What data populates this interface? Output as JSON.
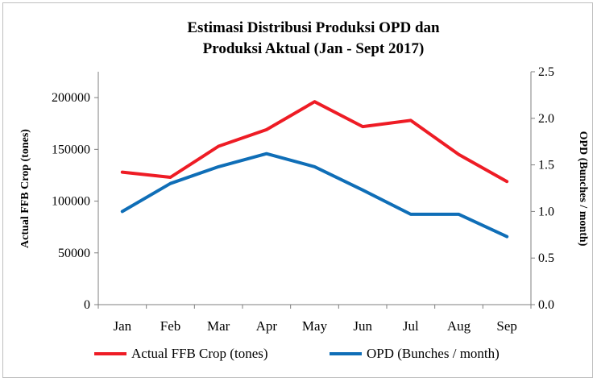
{
  "chart_data": {
    "type": "line",
    "title": [
      "Estimasi Distribusi Produksi OPD dan",
      "Produksi Aktual (Jan - Sept 2017)"
    ],
    "categories": [
      "Jan",
      "Feb",
      "Mar",
      "Apr",
      "May",
      "Jun",
      "Jul",
      "Aug",
      "Sep"
    ],
    "ylabel_left": "Actual FFB Crop (tones)",
    "ylabel_right": "OPD (Bunches / month)",
    "ylim_left": [
      0,
      225000
    ],
    "yticks_left": [
      "0",
      "50000",
      "100000",
      "150000",
      "200000"
    ],
    "ylim_right": [
      0,
      2.5
    ],
    "yticks_right": [
      "0.0",
      "0.5",
      "1.0",
      "1.5",
      "2.0",
      "2.5"
    ],
    "grid": false,
    "legend_position": "bottom",
    "series": [
      {
        "name": "Actual FFB Crop (tones)",
        "axis": "left",
        "color": "#ee1c25",
        "values": [
          128000,
          123000,
          153000,
          169000,
          196000,
          172000,
          178000,
          145000,
          119000
        ]
      },
      {
        "name": "OPD (Bunches / month)",
        "axis": "right",
        "color": "#0f6eb7",
        "values": [
          1.0,
          1.3,
          1.48,
          1.62,
          1.48,
          1.23,
          0.97,
          0.97,
          0.73
        ]
      }
    ]
  }
}
